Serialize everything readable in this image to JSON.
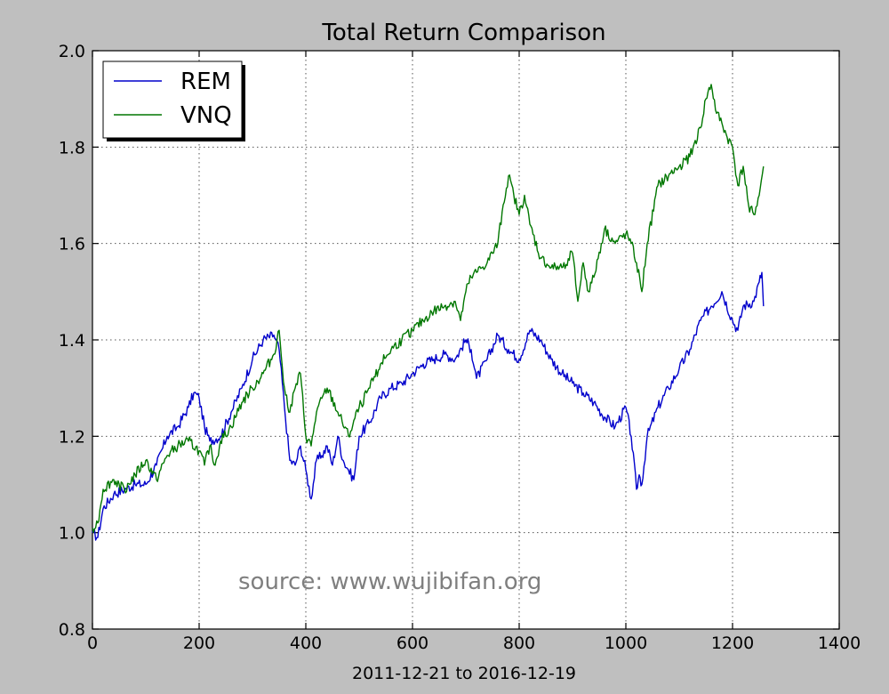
{
  "chart_data": {
    "type": "line",
    "title": "Total Return Comparison",
    "xlabel": "2011-12-21 to 2016-12-19",
    "ylabel": "",
    "xlim": [
      0,
      1400
    ],
    "ylim": [
      0.8,
      2.0
    ],
    "xticks": [
      0,
      200,
      400,
      600,
      800,
      1000,
      1200,
      1400
    ],
    "yticks": [
      0.8,
      1.0,
      1.2,
      1.4,
      1.6,
      1.8,
      2.0
    ],
    "xtick_labels": [
      "0",
      "200",
      "400",
      "600",
      "800",
      "1000",
      "1200",
      "1400"
    ],
    "ytick_labels": [
      "0.8",
      "1.0",
      "1.2",
      "1.4",
      "1.6",
      "1.8",
      "2.0"
    ],
    "grid": true,
    "legend_position": "top-left",
    "annotation": "source: www.wujibifan.org",
    "series": [
      {
        "name": "REM",
        "color": "#0000cc",
        "x": [
          0,
          10,
          20,
          40,
          60,
          80,
          100,
          120,
          140,
          160,
          180,
          190,
          200,
          210,
          220,
          240,
          260,
          280,
          300,
          320,
          340,
          350,
          360,
          370,
          380,
          390,
          400,
          410,
          420,
          430,
          440,
          450,
          460,
          470,
          480,
          490,
          500,
          520,
          540,
          560,
          580,
          600,
          620,
          640,
          660,
          680,
          700,
          710,
          720,
          740,
          760,
          780,
          800,
          820,
          840,
          860,
          880,
          900,
          920,
          940,
          960,
          980,
          1000,
          1010,
          1020,
          1025,
          1030,
          1040,
          1060,
          1080,
          1100,
          1120,
          1140,
          1160,
          1180,
          1200,
          1210,
          1220,
          1240,
          1250,
          1255,
          1258
        ],
        "values": [
          1.0,
          0.99,
          1.05,
          1.08,
          1.09,
          1.1,
          1.1,
          1.14,
          1.2,
          1.22,
          1.26,
          1.29,
          1.28,
          1.22,
          1.19,
          1.2,
          1.25,
          1.3,
          1.36,
          1.4,
          1.41,
          1.38,
          1.26,
          1.15,
          1.14,
          1.18,
          1.13,
          1.07,
          1.15,
          1.16,
          1.18,
          1.14,
          1.2,
          1.15,
          1.13,
          1.11,
          1.2,
          1.23,
          1.28,
          1.3,
          1.31,
          1.33,
          1.35,
          1.36,
          1.37,
          1.36,
          1.4,
          1.38,
          1.32,
          1.36,
          1.41,
          1.38,
          1.36,
          1.42,
          1.4,
          1.36,
          1.33,
          1.31,
          1.29,
          1.27,
          1.24,
          1.22,
          1.26,
          1.2,
          1.09,
          1.12,
          1.1,
          1.2,
          1.26,
          1.3,
          1.34,
          1.38,
          1.44,
          1.47,
          1.5,
          1.44,
          1.42,
          1.47,
          1.48,
          1.52,
          1.54,
          1.47
        ]
      },
      {
        "name": "VNQ",
        "color": "#007700",
        "x": [
          0,
          10,
          20,
          40,
          60,
          80,
          100,
          120,
          140,
          160,
          180,
          200,
          210,
          220,
          230,
          240,
          260,
          280,
          300,
          320,
          340,
          350,
          360,
          370,
          380,
          390,
          400,
          410,
          420,
          440,
          460,
          480,
          500,
          520,
          540,
          560,
          580,
          600,
          620,
          640,
          660,
          680,
          690,
          700,
          710,
          720,
          740,
          760,
          770,
          780,
          790,
          800,
          810,
          820,
          840,
          860,
          880,
          900,
          910,
          920,
          930,
          940,
          960,
          980,
          1000,
          1010,
          1020,
          1030,
          1040,
          1060,
          1080,
          1100,
          1120,
          1140,
          1150,
          1160,
          1170,
          1180,
          1190,
          1200,
          1210,
          1220,
          1230,
          1240,
          1250,
          1258
        ],
        "values": [
          1.01,
          1.02,
          1.09,
          1.11,
          1.09,
          1.12,
          1.15,
          1.11,
          1.16,
          1.18,
          1.19,
          1.17,
          1.14,
          1.18,
          1.14,
          1.19,
          1.22,
          1.27,
          1.3,
          1.33,
          1.37,
          1.42,
          1.3,
          1.25,
          1.3,
          1.33,
          1.2,
          1.18,
          1.25,
          1.3,
          1.25,
          1.2,
          1.26,
          1.3,
          1.35,
          1.38,
          1.4,
          1.42,
          1.44,
          1.46,
          1.47,
          1.48,
          1.44,
          1.5,
          1.53,
          1.54,
          1.56,
          1.6,
          1.68,
          1.74,
          1.7,
          1.66,
          1.7,
          1.64,
          1.57,
          1.55,
          1.55,
          1.58,
          1.48,
          1.56,
          1.5,
          1.53,
          1.63,
          1.6,
          1.62,
          1.6,
          1.56,
          1.5,
          1.6,
          1.72,
          1.74,
          1.76,
          1.78,
          1.84,
          1.9,
          1.93,
          1.87,
          1.85,
          1.82,
          1.8,
          1.72,
          1.76,
          1.68,
          1.66,
          1.7,
          1.76
        ]
      }
    ]
  }
}
